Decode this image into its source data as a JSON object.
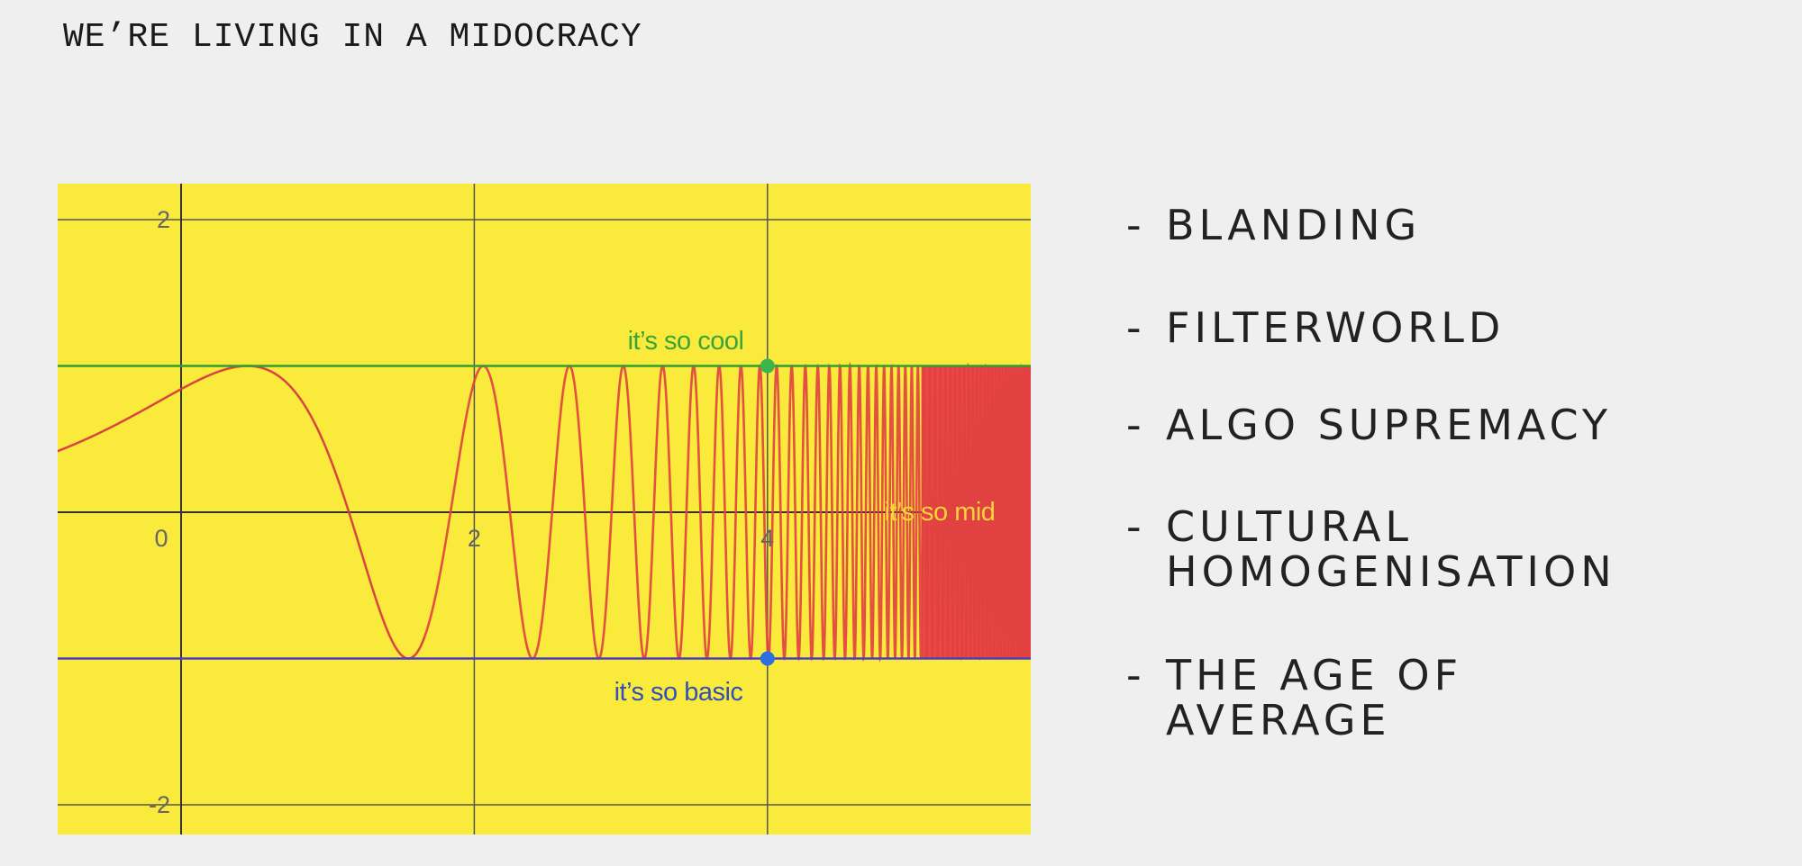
{
  "header": {
    "title": "WE’RE LIVING IN A MIDOCRACY"
  },
  "graph": {
    "x_tick_labels": [
      "0",
      "2",
      "4"
    ],
    "y_tick_labels": [
      "2",
      "-2"
    ],
    "annotations": {
      "cool": "it’s so cool",
      "mid": "it’s so mid",
      "basic": "it’s so basic"
    }
  },
  "list": {
    "marker": "-",
    "items": [
      [
        "BLANDING"
      ],
      [
        "FILTERWORLD"
      ],
      [
        "ALGO SUPREMACY"
      ],
      [
        "CULTURAL",
        "HOMOGENISATION"
      ],
      [
        "THE AGE OF",
        "AVERAGE"
      ]
    ]
  }
}
